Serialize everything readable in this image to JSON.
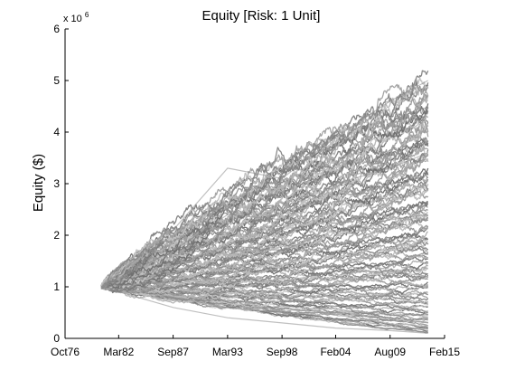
{
  "chart_data": {
    "type": "line",
    "title": "Equity [Risk: 1 Unit]",
    "xlabel": "",
    "ylabel": "Equity ($)",
    "y_exponent_label": "x 10",
    "y_exponent_power": "6",
    "y_multiplier": 1000000,
    "ylim": [
      0,
      6
    ],
    "yticks": [
      0,
      1,
      2,
      3,
      4,
      5,
      6
    ],
    "ytick_labels": [
      "0",
      "1",
      "2",
      "3",
      "4",
      "5",
      "6"
    ],
    "xlim": [
      "1976-10",
      "2015-02"
    ],
    "xticks": [
      "1976-10",
      "1982-03",
      "1987-09",
      "1993-03",
      "1998-09",
      "2004-02",
      "2009-08",
      "2015-02"
    ],
    "xtick_labels": [
      "Oct76",
      "Mar82",
      "Sep87",
      "Mar93",
      "Sep98",
      "Feb04",
      "Aug09",
      "Feb15"
    ],
    "start_date": "1980-06",
    "end_date": "2013-06",
    "start_value": 1,
    "final_value_range": [
      0.1,
      5.1
    ],
    "series_color": "#8c8c8c",
    "series_count": 120,
    "series": [
      {
        "name": "",
        "x": [
          "1980-06",
          "1987-09",
          "1993-03",
          "1998-09",
          "2004-02",
          "2009-08",
          "2013-06"
        ],
        "values": [
          1.0,
          2.1,
          3.3,
          3.1,
          3.9,
          4.6,
          5.0
        ]
      },
      {
        "name": "",
        "x": [
          "1980-06",
          "1987-09",
          "1993-03",
          "1998-09",
          "2004-02",
          "2009-08",
          "2013-06"
        ],
        "values": [
          1.0,
          1.7,
          2.4,
          2.3,
          3.0,
          3.3,
          3.6
        ]
      },
      {
        "name": "",
        "x": [
          "1980-06",
          "1987-09",
          "1993-03",
          "1998-09",
          "2004-02",
          "2009-08",
          "2013-06"
        ],
        "values": [
          1.0,
          1.4,
          1.8,
          1.7,
          2.1,
          2.3,
          2.4
        ]
      },
      {
        "name": "",
        "x": [
          "1980-06",
          "1987-09",
          "1993-03",
          "1998-09",
          "2004-02",
          "2009-08",
          "2013-06"
        ],
        "values": [
          1.0,
          1.1,
          1.2,
          1.1,
          1.3,
          1.3,
          1.2
        ]
      },
      {
        "name": "",
        "x": [
          "1980-06",
          "1987-09",
          "1993-03",
          "1998-09",
          "2004-02",
          "2009-08",
          "2013-06"
        ],
        "values": [
          1.0,
          0.8,
          0.6,
          0.5,
          0.5,
          0.4,
          0.3
        ]
      },
      {
        "name": "",
        "x": [
          "1980-06",
          "1987-09",
          "1993-03",
          "1998-09",
          "2004-02",
          "2009-08",
          "2013-06"
        ],
        "values": [
          1.0,
          0.6,
          0.4,
          0.3,
          0.2,
          0.15,
          0.1
        ]
      }
    ],
    "grid": false,
    "legend": "none"
  }
}
